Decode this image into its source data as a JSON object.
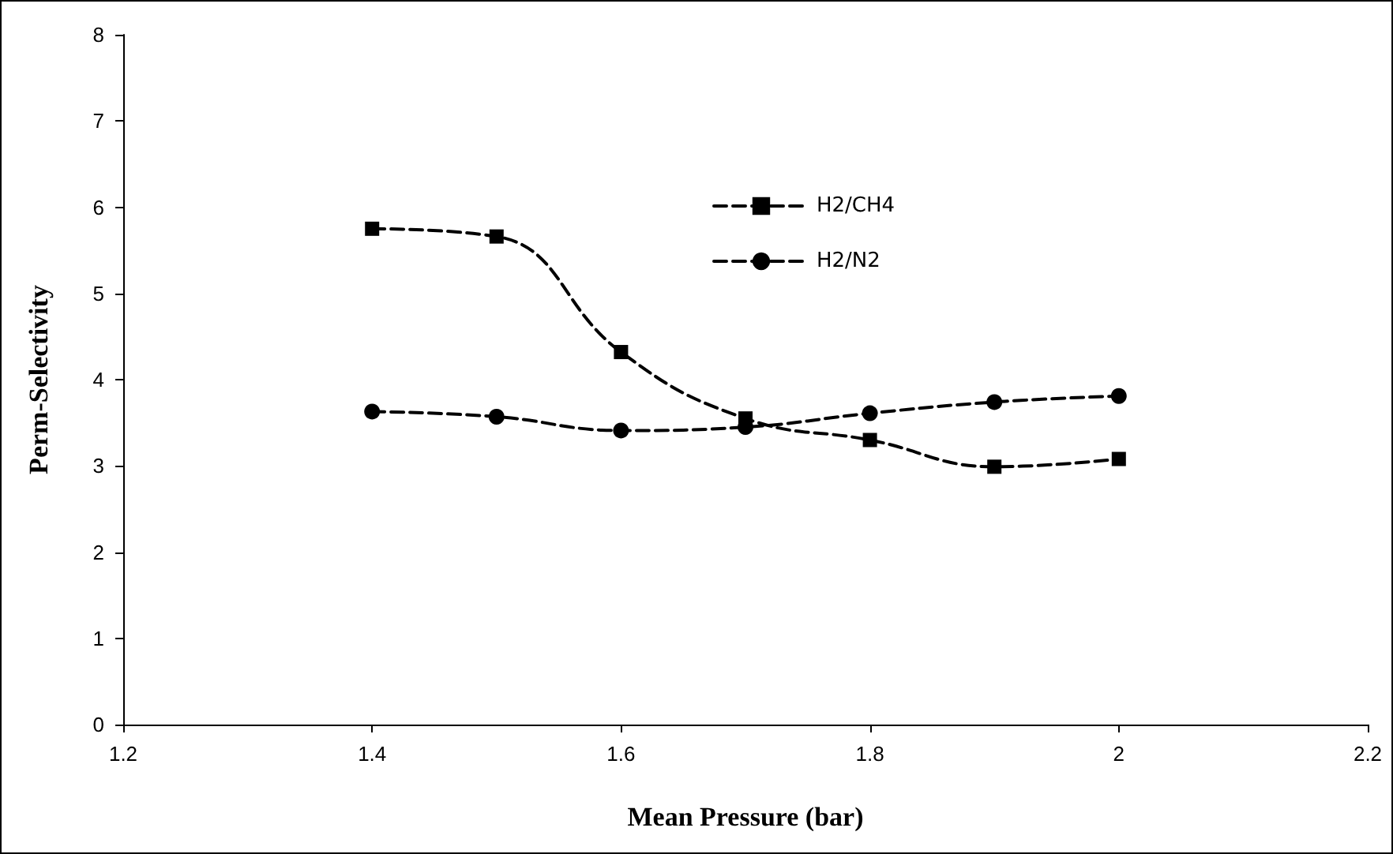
{
  "chart_data": {
    "type": "line",
    "xlabel": "Mean Pressure (bar)",
    "ylabel": "Perm-Selectivity",
    "x": [
      1.4,
      1.5,
      1.6,
      1.7,
      1.8,
      1.9,
      2.0
    ],
    "series": [
      {
        "name": "H2/CH4",
        "color": "#000000",
        "marker": "square",
        "line_style": "dashed",
        "values": [
          5.75,
          5.66,
          4.32,
          3.55,
          3.3,
          2.99,
          3.08
        ]
      },
      {
        "name": "H2/N2",
        "color": "#000000",
        "marker": "circle",
        "line_style": "dashed",
        "values": [
          3.63,
          3.57,
          3.41,
          3.45,
          3.61,
          3.74,
          3.81
        ]
      }
    ],
    "xlim": [
      1.2,
      2.2
    ],
    "xticks": [
      1.2,
      1.4,
      1.6,
      1.8,
      2,
      2.2
    ],
    "ylim": [
      0,
      8
    ],
    "yticks": [
      0,
      1,
      2,
      3,
      4,
      5,
      6,
      7,
      8
    ],
    "grid": false,
    "legend": "top"
  }
}
